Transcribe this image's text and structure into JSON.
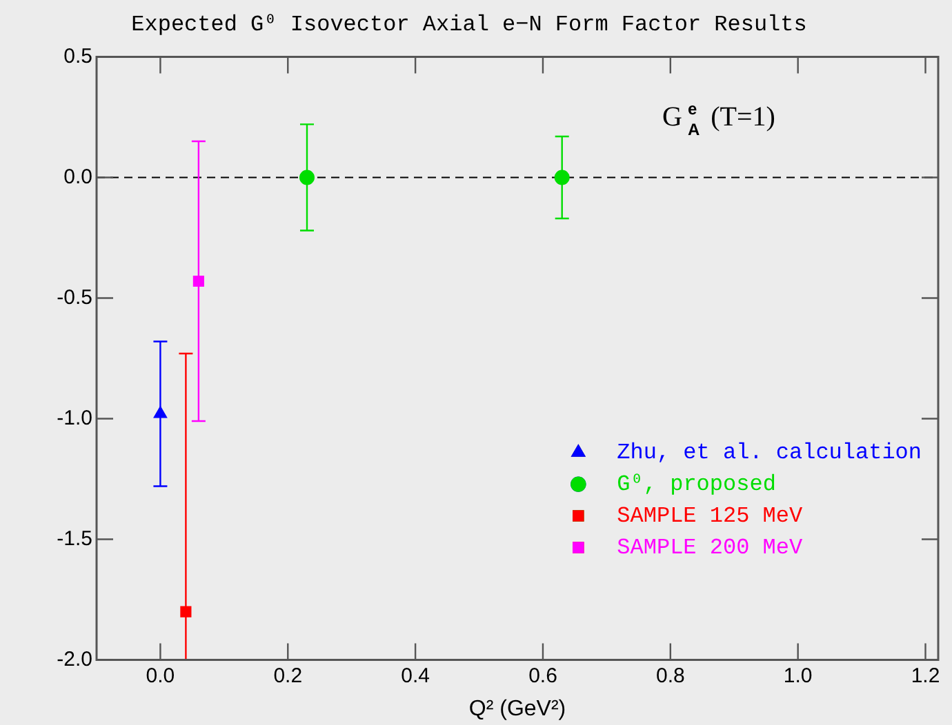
{
  "chart_data": {
    "type": "scatter",
    "title": "Expected G⁰ Isovector Axial e−N Form Factor Results",
    "xlabel": "Q² (GeV²)",
    "xlim": [
      -0.1,
      1.22
    ],
    "xticks": [
      {
        "value": 0,
        "label": "0.0"
      },
      0.2,
      0.4,
      0.6,
      0.8,
      {
        "value": 1,
        "label": "1.0"
      },
      1.2
    ],
    "ylim": [
      -2.0,
      0.5
    ],
    "yticks": [
      {
        "value": -2,
        "label": "-2.0"
      },
      -1.5,
      {
        "value": -1,
        "label": "-1.0"
      },
      -0.5,
      {
        "value": 0,
        "label": "0.0"
      },
      0.5
    ],
    "grid": false,
    "legend": "bottom right",
    "annotations": [
      "G$^{e}$$_{A}$ (T=1)"
    ],
    "ref_lines": [
      {
        "axis": "y",
        "value": 0,
        "line_style": "dashed",
        "color": "#000000"
      }
    ],
    "series": [
      {
        "name": "Zhu, et al. calculation",
        "color": "#0000ff",
        "marker": "triangle",
        "x": [
          0.0
        ],
        "values": [
          -0.98
        ],
        "errors": [
          0.3
        ]
      },
      {
        "name": "G⁰, proposed",
        "color": "#00dd00",
        "marker": "circle",
        "x": [
          0.23,
          0.63
        ],
        "values": [
          0.0,
          0.0
        ],
        "errors": [
          0.22,
          0.17
        ]
      },
      {
        "name": "SAMPLE 125 MeV",
        "color": "#ff0000",
        "marker": "square",
        "x": [
          0.04
        ],
        "values": [
          -1.8
        ],
        "errors": [
          [
            -2.0,
            -0.73
          ]
        ]
      },
      {
        "name": "SAMPLE 200 MeV",
        "color": "#ff00ff",
        "marker": "square",
        "x": [
          0.06
        ],
        "values": [
          -0.43
        ],
        "errors": [
          [
            -1.01,
            0.15
          ]
        ]
      }
    ]
  }
}
